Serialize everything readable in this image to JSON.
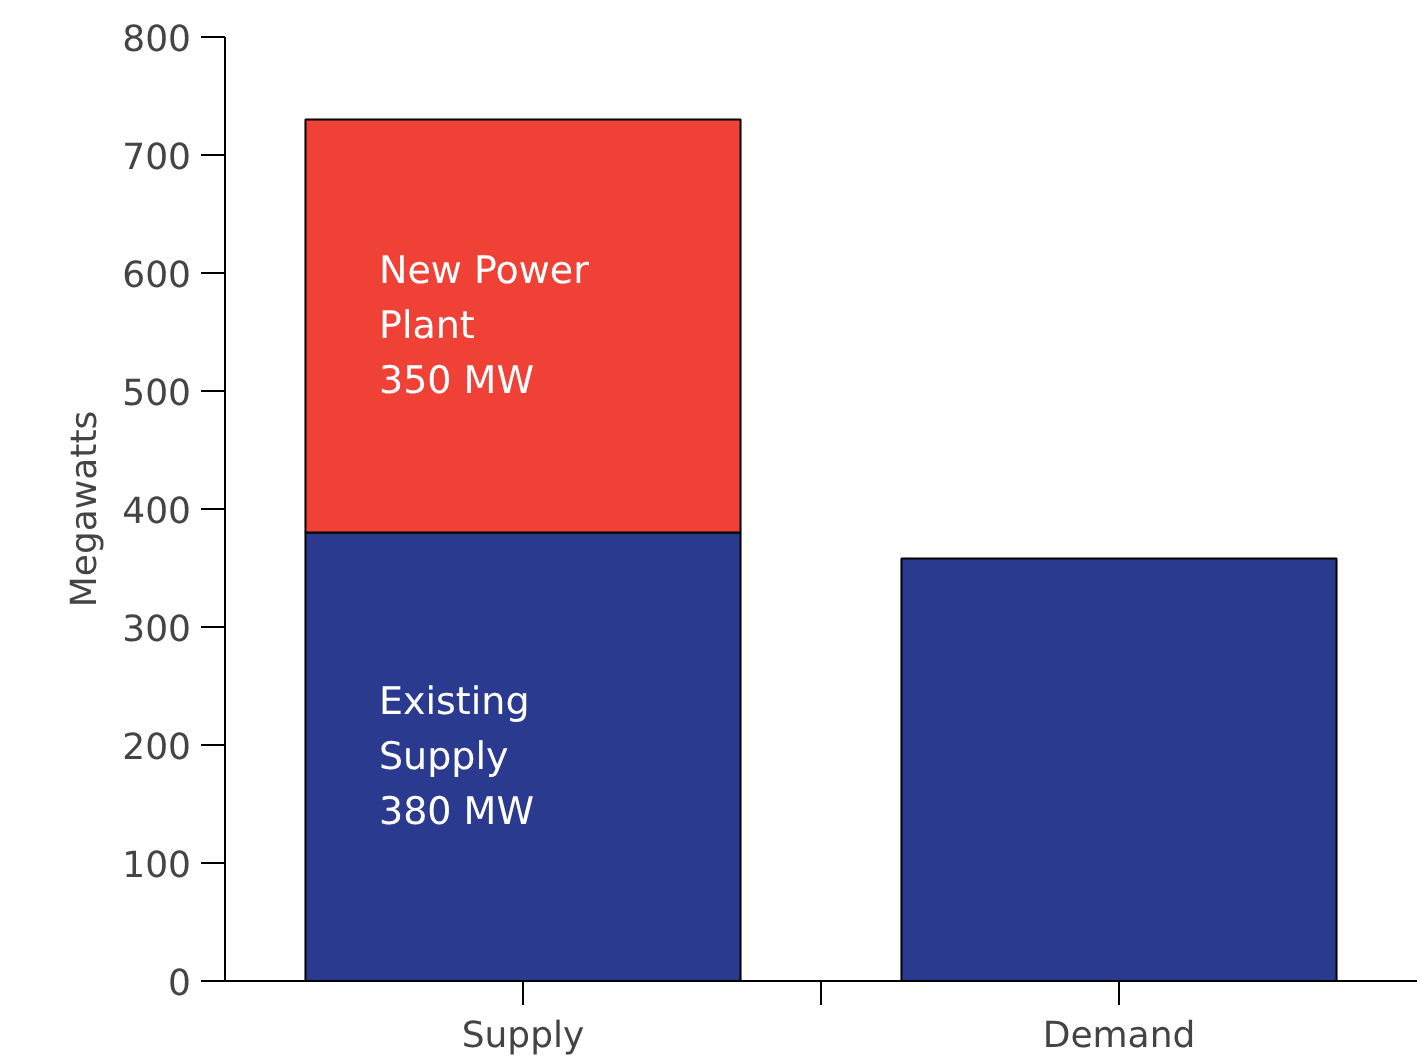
{
  "chart_data": {
    "type": "bar",
    "stacked": true,
    "ylabel": "Megawatts",
    "categories": [
      "Supply",
      "Demand"
    ],
    "ylim": [
      0,
      800
    ],
    "yticks": [
      0,
      100,
      200,
      300,
      400,
      500,
      600,
      700,
      800
    ],
    "grid": false,
    "series": [
      {
        "color": "#2a3a8f",
        "values": [
          380,
          358
        ]
      },
      {
        "color": "#ef4136",
        "values": [
          350,
          null
        ]
      }
    ],
    "annotations": [
      "Existing\nSupply\n380 MW",
      "New Power\nPlant\n350 MW"
    ]
  }
}
